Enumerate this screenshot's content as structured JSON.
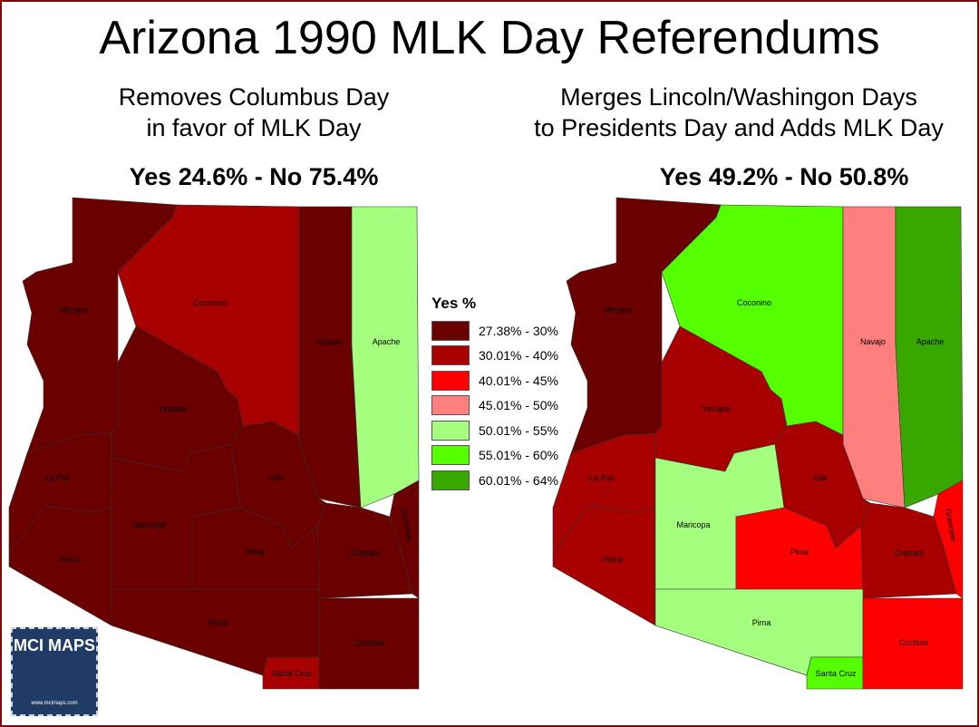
{
  "title": "Arizona 1990 MLK Day Referendums",
  "maps": [
    {
      "subtitle_line1": "Removes Columbus Day",
      "subtitle_line2": "in favor of MLK Day",
      "result": "Yes 24.6% - No 75.4%",
      "counties": {
        "Mohave": 0,
        "Coconino": 1,
        "Navajo": 0,
        "Apache": 4,
        "Yavapai": 0,
        "La Paz": 0,
        "Yuma": 0,
        "Maricopa": 0,
        "Gila": 0,
        "Pinal": 0,
        "Graham": 0,
        "Greenlee": 0,
        "Pima": 0,
        "Santa Cruz": 1,
        "Cochise": 0
      }
    },
    {
      "subtitle_line1": "Merges Lincoln/Washingon Days",
      "subtitle_line2": "to Presidents Day and Adds MLK Day",
      "result": "Yes 49.2% - No 50.8%",
      "counties": {
        "Mohave": 0,
        "Coconino": 5,
        "Navajo": 3,
        "Apache": 6,
        "Yavapai": 1,
        "La Paz": 1,
        "Yuma": 1,
        "Maricopa": 4,
        "Gila": 1,
        "Pinal": 2,
        "Graham": 1,
        "Greenlee": 2,
        "Pima": 4,
        "Santa Cruz": 5,
        "Cochise": 2
      }
    }
  ],
  "legend": {
    "title": "Yes %",
    "items": [
      {
        "label": "27.38% - 30%",
        "color": "#6b0000"
      },
      {
        "label": "30.01% - 40%",
        "color": "#a80000"
      },
      {
        "label": "40.01% - 45%",
        "color": "#ff0000"
      },
      {
        "label": "45.01% - 50%",
        "color": "#ff7f7f"
      },
      {
        "label": "50.01% - 55%",
        "color": "#a5ff7f"
      },
      {
        "label": "55.01% - 60%",
        "color": "#55ff00"
      },
      {
        "label": "60.01% - 64%",
        "color": "#38a800"
      }
    ]
  },
  "logo": {
    "name": "MCI MAPS",
    "url": "www.mcimaps.com"
  }
}
